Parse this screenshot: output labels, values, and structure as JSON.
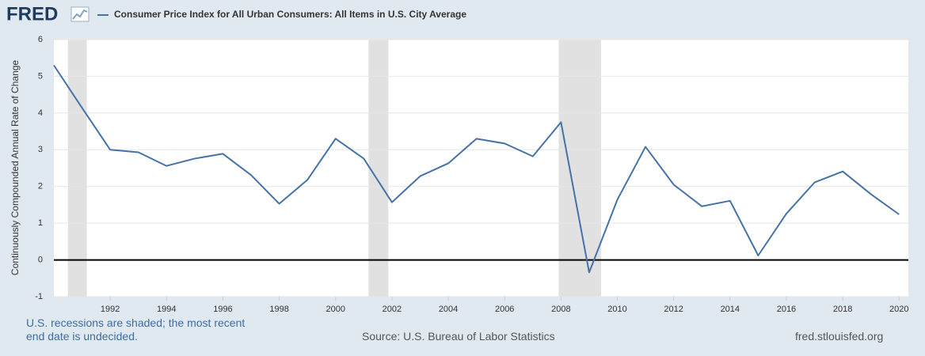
{
  "chart_data": {
    "type": "line",
    "logo": "FRED",
    "y_label": "Continuously Compounded Annual Rate of Change",
    "x": [
      1990,
      1991,
      1992,
      1993,
      1994,
      1995,
      1996,
      1997,
      1998,
      1999,
      2000,
      2001,
      2002,
      2003,
      2004,
      2005,
      2006,
      2007,
      2008,
      2009,
      2010,
      2011,
      2012,
      2013,
      2014,
      2015,
      2016,
      2017,
      2018,
      2019,
      2020
    ],
    "series": [
      {
        "name": "Consumer Price Index for All Urban Consumers: All Items in U.S. City Average",
        "color": "#4572a7",
        "values": [
          5.3,
          4.14,
          3.0,
          2.93,
          2.56,
          2.76,
          2.89,
          2.31,
          1.53,
          2.18,
          3.3,
          2.76,
          1.57,
          2.28,
          2.63,
          3.3,
          3.17,
          2.82,
          3.75,
          -0.34,
          1.64,
          3.08,
          2.05,
          1.46,
          1.61,
          0.12,
          1.26,
          2.11,
          2.41,
          1.79,
          1.24
        ]
      }
    ],
    "recessions": [
      [
        1990.5,
        1991.17
      ],
      [
        2001.17,
        2001.87
      ],
      [
        2007.92,
        2009.42
      ]
    ],
    "xlim": [
      1990,
      2020.33
    ],
    "xticks": [
      1992,
      1994,
      1996,
      1998,
      2000,
      2002,
      2004,
      2006,
      2008,
      2010,
      2012,
      2014,
      2016,
      2018,
      2020
    ],
    "ylim": [
      -1,
      6
    ],
    "yticks": [
      -1,
      0,
      1,
      2,
      3,
      4,
      5,
      6
    ],
    "grid": true,
    "note": "U.S. recessions are shaded; the most recent end date is undecided.",
    "source": "Source: U.S. Bureau of Labor Statistics",
    "site": "fred.stlouisfed.org"
  }
}
